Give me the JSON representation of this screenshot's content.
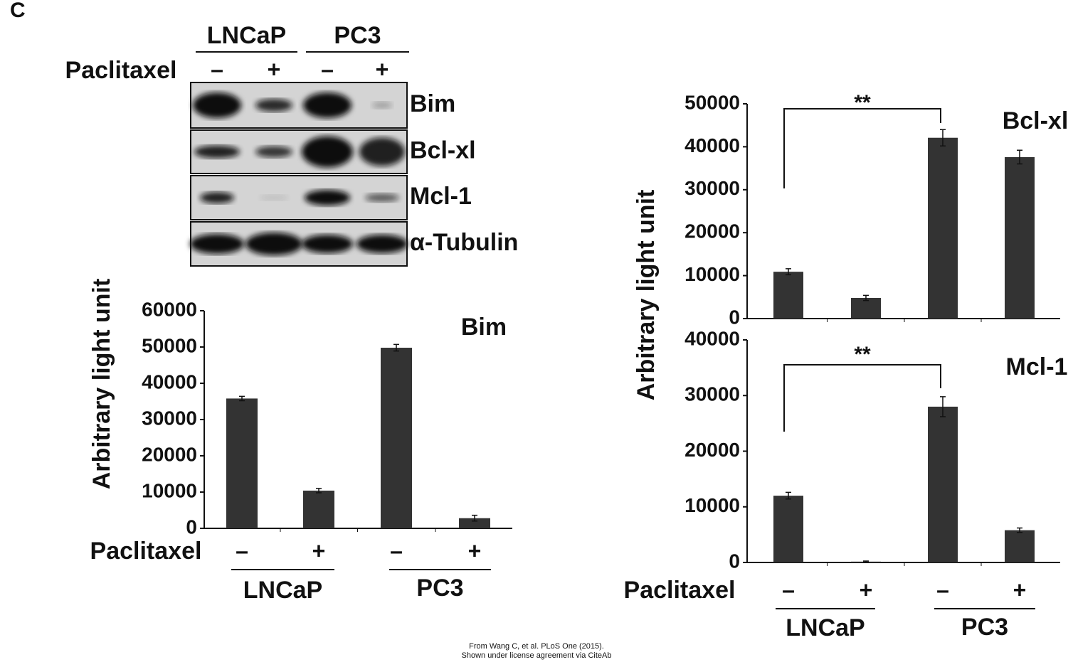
{
  "panel_label": "C",
  "blot": {
    "cell_lines": [
      "LNCaP",
      "PC3"
    ],
    "treatment_label": "Paclitaxel",
    "treatments": [
      "–",
      "+",
      "–",
      "+"
    ],
    "bands": [
      "Bim",
      "Bcl-xl",
      "Mcl-1",
      "α-Tubulin"
    ]
  },
  "chart_data": [
    {
      "type": "bar",
      "title": "Bim",
      "y_label": "Arbitrary light unit",
      "x_label": "Paclitaxel",
      "categories": [
        "–",
        "+",
        "–",
        "+"
      ],
      "groups": [
        "LNCaP",
        "PC3"
      ],
      "values": [
        35800,
        10400,
        49800,
        2800
      ],
      "errors": [
        600,
        600,
        900,
        800
      ],
      "color": "#333333",
      "ylim": [
        0,
        60000
      ],
      "yticks": [
        0,
        10000,
        20000,
        30000,
        40000,
        50000,
        60000
      ]
    },
    {
      "type": "bar",
      "title": "Bcl-xl",
      "y_label": "Arbitrary light unit",
      "categories": [
        null,
        null,
        null,
        null
      ],
      "values": [
        10900,
        4800,
        42100,
        37600
      ],
      "errors": [
        700,
        600,
        1900,
        1600
      ],
      "color": "#333333",
      "ylim": [
        0,
        50000
      ],
      "yticks": [
        0,
        10000,
        20000,
        30000,
        40000,
        50000
      ],
      "annotations": [
        {
          "text": "**"
        }
      ]
    },
    {
      "type": "bar",
      "title": "Mcl-1",
      "x_label": "Paclitaxel",
      "categories": [
        "–",
        "+",
        "–",
        "+"
      ],
      "groups": [
        "LNCaP",
        "PC3"
      ],
      "values": [
        12000,
        150,
        28000,
        5800
      ],
      "errors": [
        600,
        100,
        1800,
        400
      ],
      "color": "#333333",
      "ylim": [
        0,
        40000
      ],
      "yticks": [
        0,
        10000,
        20000,
        30000,
        40000
      ],
      "annotations": [
        {
          "text": "**"
        }
      ]
    }
  ],
  "credit": [
    "From Wang C, et al. PLoS One (2015).",
    "Shown under license agreement via CiteAb"
  ]
}
